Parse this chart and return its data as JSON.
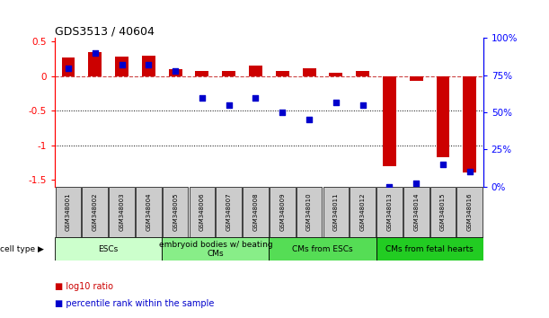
{
  "title": "GDS3513 / 40604",
  "samples": [
    "GSM348001",
    "GSM348002",
    "GSM348003",
    "GSM348004",
    "GSM348005",
    "GSM348006",
    "GSM348007",
    "GSM348008",
    "GSM348009",
    "GSM348010",
    "GSM348011",
    "GSM348012",
    "GSM348013",
    "GSM348014",
    "GSM348015",
    "GSM348016"
  ],
  "log10_ratio": [
    0.27,
    0.35,
    0.28,
    0.3,
    0.1,
    0.07,
    0.08,
    0.15,
    0.07,
    0.12,
    0.05,
    0.07,
    -1.3,
    -0.07,
    -1.18,
    -1.4
  ],
  "percentile_rank": [
    80,
    90,
    82,
    82,
    78,
    60,
    55,
    60,
    50,
    45,
    57,
    55,
    0,
    2,
    15,
    10
  ],
  "bar_color": "#cc0000",
  "dot_color": "#0000cc",
  "groups": [
    {
      "label": "ESCs",
      "start": 0,
      "end": 3,
      "color": "#ccffcc"
    },
    {
      "label": "embryoid bodies w/ beating\nCMs",
      "start": 4,
      "end": 7,
      "color": "#88ee88"
    },
    {
      "label": "CMs from ESCs",
      "start": 8,
      "end": 11,
      "color": "#55dd55"
    },
    {
      "label": "CMs from fetal hearts",
      "start": 12,
      "end": 15,
      "color": "#22cc22"
    }
  ],
  "ylim_left": [
    -1.6,
    0.55
  ],
  "ylim_right": [
    0,
    100
  ],
  "yticks_left": [
    -1.5,
    -1.0,
    -0.5,
    0.0,
    0.5
  ],
  "ytick_labels_left": [
    "-1.5",
    "-1",
    "-0.5",
    "0",
    "0.5"
  ],
  "yticks_right": [
    0,
    25,
    50,
    75,
    100
  ],
  "ytick_labels_right": [
    "0%",
    "25%",
    "50%",
    "75%",
    "100%"
  ],
  "hline_y": 0.0,
  "dotted_lines": [
    -0.5,
    -1.0
  ],
  "background_color": "#ffffff",
  "label_area_color": "#cccccc"
}
